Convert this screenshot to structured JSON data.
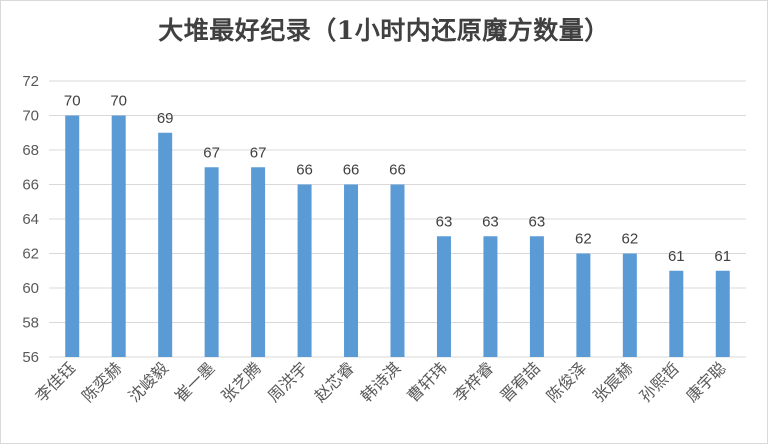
{
  "chart_data": {
    "type": "bar",
    "title": "大堆最好纪录（1小时内还原魔方数量）",
    "xlabel": "",
    "ylabel": "",
    "ylim": [
      56,
      72
    ],
    "yticks": [
      56,
      58,
      60,
      62,
      64,
      66,
      68,
      70,
      72
    ],
    "grid": true,
    "legend": "none",
    "bar_color": "#5b9bd5",
    "categories": [
      "李佳钰",
      "陈奕赫",
      "沈峻毅",
      "崔一墨",
      "张艺腾",
      "周洪宇",
      "赵芯睿",
      "韩诗淇",
      "曹轩玮",
      "李梓睿",
      "晋宥喆",
      "陈俊泽",
      "张宸赫",
      "孙熙哲",
      "康宇聪"
    ],
    "values": [
      70,
      70,
      69,
      67,
      67,
      66,
      66,
      66,
      63,
      63,
      63,
      62,
      62,
      61,
      61
    ]
  }
}
